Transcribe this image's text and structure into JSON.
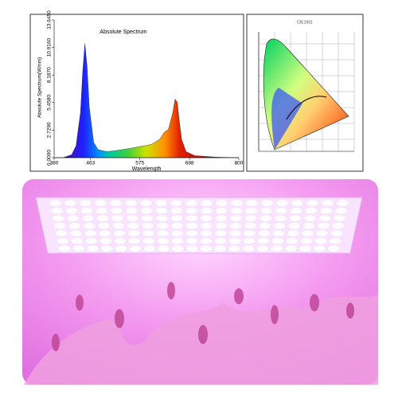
{
  "chart_data": {
    "type": "area",
    "title": "Absolute Spectrum",
    "xlabel": "Wavelength",
    "ylabel": "Absolute Spectrum(W/nm)",
    "x": [
      380,
      400,
      420,
      430,
      440,
      445,
      450,
      455,
      460,
      470,
      480,
      500,
      520,
      550,
      575,
      600,
      620,
      630,
      640,
      650,
      655,
      660,
      665,
      670,
      680,
      700,
      750,
      800
    ],
    "values": [
      0,
      0,
      0.3,
      1.2,
      4.5,
      8.5,
      11.3,
      9,
      5,
      1.5,
      0.8,
      0.6,
      0.7,
      0.9,
      1.1,
      1.3,
      1.8,
      2.5,
      2.8,
      4.5,
      5.8,
      5.5,
      3.5,
      1.8,
      0.6,
      0.2,
      0.05,
      0
    ],
    "xlim": [
      380,
      800
    ],
    "xticks": [
      380,
      463,
      575,
      688,
      800
    ],
    "ylim": [
      0,
      13.645
    ],
    "yticks": [
      {
        "value": 0,
        "label": "0.0000"
      },
      {
        "value": 2.729,
        "label": "2.7290"
      },
      {
        "value": 5.458,
        "label": "5.4580"
      },
      {
        "value": 8.187,
        "label": "8.1870"
      },
      {
        "value": 10.916,
        "label": "10.9160"
      },
      {
        "value": 13.645,
        "label": "13.6450"
      }
    ]
  },
  "cie": {
    "title": "CIE1931"
  }
}
